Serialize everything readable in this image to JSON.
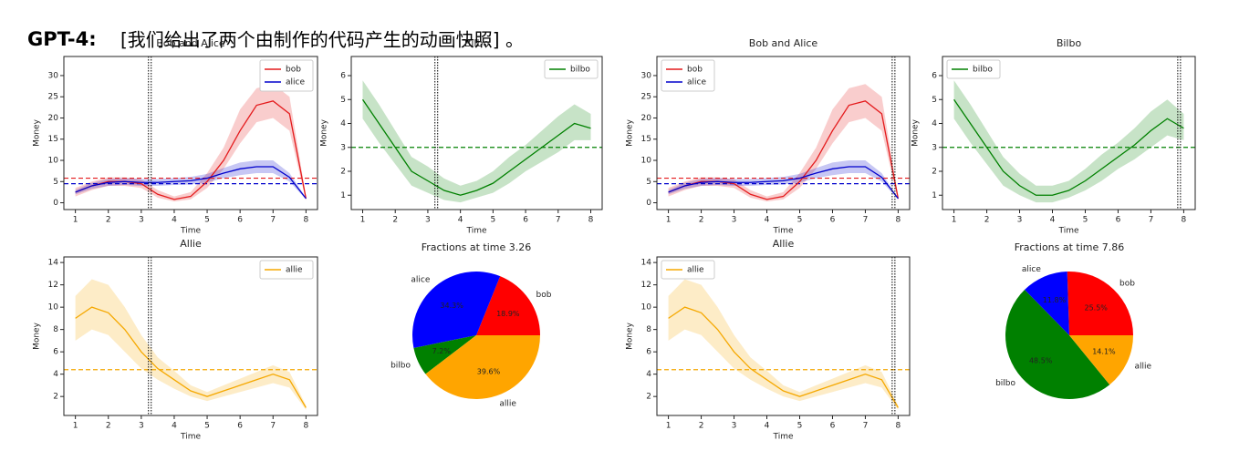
{
  "caption": {
    "lead": "GPT-4:",
    "text": "[我们给出了两个由制作的代码产生的动画快照] 。"
  },
  "chart_data": [
    {
      "type": "line",
      "title": "Bob and Alice",
      "xlabel": "Time",
      "ylabel": "Money",
      "x": [
        1,
        1.5,
        2,
        2.5,
        3,
        3.5,
        4,
        4.5,
        5,
        5.5,
        6,
        6.5,
        7,
        7.5,
        8
      ],
      "xlim": [
        0.65,
        8.35
      ],
      "xticks": [
        1,
        2,
        3,
        4,
        5,
        6,
        7,
        8
      ],
      "ylim": [
        -1.6,
        34.5
      ],
      "yticks": [
        0,
        5,
        10,
        15,
        20,
        25,
        30
      ],
      "legend": "upper right",
      "vline": 3.26,
      "hlines": [
        {
          "value": 5.8,
          "color": "#e41a1c"
        },
        {
          "value": 4.5,
          "color": "#0000cc"
        }
      ],
      "series": [
        {
          "name": "bob",
          "color": "#e41a1c",
          "values": [
            2.5,
            4,
            5,
            5,
            4.5,
            2,
            0.8,
            1.5,
            5,
            10,
            17,
            23,
            24,
            21,
            1
          ],
          "lower": [
            1.5,
            3,
            4,
            4,
            3.5,
            1.2,
            0.3,
            0.8,
            3.5,
            8,
            14,
            19,
            20,
            17,
            0.5
          ],
          "upper": [
            3.5,
            5,
            6,
            6,
            5.5,
            3,
            1.5,
            2.5,
            7,
            13,
            22,
            27,
            28,
            25,
            1.5
          ]
        },
        {
          "name": "alice",
          "color": "#0000cc",
          "values": [
            2.5,
            4,
            4.8,
            5,
            4.8,
            4.8,
            5,
            5.2,
            5.8,
            7,
            8,
            8.5,
            8.5,
            6,
            1
          ],
          "lower": [
            2,
            3.3,
            4,
            4.2,
            4,
            4,
            4.2,
            4.3,
            4.8,
            5.8,
            6.5,
            7,
            7,
            5,
            0.8
          ],
          "upper": [
            3,
            4.7,
            5.6,
            5.8,
            5.6,
            5.6,
            5.8,
            6.1,
            6.8,
            8.2,
            9.5,
            10,
            10,
            7,
            1.2
          ]
        }
      ]
    },
    {
      "type": "line",
      "title": "Bilbo",
      "xlabel": "Time",
      "ylabel": "Money",
      "x": [
        1,
        1.5,
        2,
        2.5,
        3,
        3.5,
        4,
        4.5,
        5,
        5.5,
        6,
        6.5,
        7,
        7.5,
        8
      ],
      "xlim": [
        0.65,
        8.35
      ],
      "xticks": [
        1,
        2,
        3,
        4,
        5,
        6,
        7,
        8
      ],
      "ylim": [
        0.4,
        6.8
      ],
      "yticks": [
        1,
        2,
        3,
        4,
        5,
        6
      ],
      "legend": "upper right",
      "vline": 3.26,
      "hlines": [
        {
          "value": 3,
          "color": "#008000"
        }
      ],
      "series": [
        {
          "name": "bilbo",
          "color": "#008000",
          "values": [
            5,
            4,
            3,
            2,
            1.6,
            1.2,
            1,
            1.2,
            1.5,
            2,
            2.5,
            3,
            3.5,
            4,
            3.8
          ],
          "lower": [
            4.2,
            3.2,
            2.3,
            1.4,
            1.1,
            0.8,
            0.7,
            0.9,
            1.1,
            1.5,
            2,
            2.4,
            2.8,
            3.3,
            3.3
          ],
          "upper": [
            5.8,
            4.8,
            3.7,
            2.6,
            2.2,
            1.7,
            1.4,
            1.6,
            2,
            2.6,
            3.1,
            3.7,
            4.3,
            4.8,
            4.4
          ]
        }
      ]
    },
    {
      "type": "line",
      "title": "Bob and Alice",
      "xlabel": "Time",
      "ylabel": "Money",
      "x": [
        1,
        1.5,
        2,
        2.5,
        3,
        3.5,
        4,
        4.5,
        5,
        5.5,
        6,
        6.5,
        7,
        7.5,
        8
      ],
      "xlim": [
        0.65,
        8.35
      ],
      "xticks": [
        1,
        2,
        3,
        4,
        5,
        6,
        7,
        8
      ],
      "ylim": [
        -1.6,
        34.5
      ],
      "yticks": [
        0,
        5,
        10,
        15,
        20,
        25,
        30
      ],
      "legend": "upper left",
      "vline": 7.86,
      "hlines": [
        {
          "value": 5.8,
          "color": "#e41a1c"
        },
        {
          "value": 4.5,
          "color": "#0000cc"
        }
      ],
      "series": [
        {
          "name": "bob",
          "color": "#e41a1c",
          "values": [
            2.5,
            4,
            5,
            5,
            4.5,
            2,
            0.8,
            1.5,
            5,
            10,
            17,
            23,
            24,
            21,
            1
          ],
          "lower": [
            1.5,
            3,
            4,
            4,
            3.5,
            1.2,
            0.3,
            0.8,
            3.5,
            8,
            14,
            19,
            20,
            17,
            0.5
          ],
          "upper": [
            3.5,
            5,
            6,
            6,
            5.5,
            3,
            1.5,
            2.5,
            7,
            13,
            22,
            27,
            28,
            25,
            1.5
          ]
        },
        {
          "name": "alice",
          "color": "#0000cc",
          "values": [
            2.5,
            4,
            4.8,
            5,
            4.8,
            4.8,
            5,
            5.2,
            5.8,
            7,
            8,
            8.5,
            8.5,
            6,
            1
          ],
          "lower": [
            2,
            3.3,
            4,
            4.2,
            4,
            4,
            4.2,
            4.3,
            4.8,
            5.8,
            6.5,
            7,
            7,
            5,
            0.8
          ],
          "upper": [
            3,
            4.7,
            5.6,
            5.8,
            5.6,
            5.6,
            5.8,
            6.1,
            6.8,
            8.2,
            9.5,
            10,
            10,
            7,
            1.2
          ]
        }
      ]
    },
    {
      "type": "line",
      "title": "Bilbo",
      "xlabel": "Time",
      "ylabel": "Money",
      "x": [
        1,
        1.5,
        2,
        2.5,
        3,
        3.5,
        4,
        4.5,
        5,
        5.5,
        6,
        6.5,
        7,
        7.5,
        8
      ],
      "xlim": [
        0.65,
        8.35
      ],
      "xticks": [
        1,
        2,
        3,
        4,
        5,
        6,
        7,
        8
      ],
      "ylim": [
        0.4,
        6.8
      ],
      "yticks": [
        1,
        2,
        3,
        4,
        5,
        6
      ],
      "legend": "upper left",
      "vline": 7.86,
      "hlines": [
        {
          "value": 3,
          "color": "#008000"
        }
      ],
      "series": [
        {
          "name": "bilbo",
          "color": "#008000",
          "values": [
            5,
            4,
            3,
            2,
            1.4,
            1,
            1,
            1.2,
            1.6,
            2.1,
            2.6,
            3.1,
            3.7,
            4.2,
            3.8
          ],
          "lower": [
            4.2,
            3.2,
            2.3,
            1.4,
            1,
            0.7,
            0.7,
            0.9,
            1.2,
            1.6,
            2.1,
            2.5,
            3,
            3.5,
            3.3
          ],
          "upper": [
            5.8,
            4.8,
            3.7,
            2.6,
            1.9,
            1.4,
            1.4,
            1.6,
            2.1,
            2.7,
            3.2,
            3.8,
            4.5,
            5,
            4.4
          ]
        }
      ]
    },
    {
      "type": "line",
      "title": "Allie",
      "xlabel": "Time",
      "ylabel": "Money",
      "x": [
        1,
        1.5,
        2,
        2.5,
        3,
        3.5,
        4,
        4.5,
        5,
        5.5,
        6,
        6.5,
        7,
        7.5,
        8
      ],
      "xlim": [
        0.65,
        8.35
      ],
      "xticks": [
        1,
        2,
        3,
        4,
        5,
        6,
        7,
        8
      ],
      "ylim": [
        0.3,
        14.5
      ],
      "yticks": [
        2,
        4,
        6,
        8,
        10,
        12,
        14
      ],
      "legend": "upper right",
      "vline": 3.26,
      "hlines": [
        {
          "value": 4.4,
          "color": "#f5a800"
        }
      ],
      "series": [
        {
          "name": "allie",
          "color": "#f5a800",
          "values": [
            9,
            10,
            9.5,
            8,
            6,
            4.5,
            3.5,
            2.5,
            2,
            2.5,
            3,
            3.5,
            4,
            3.5,
            1
          ],
          "lower": [
            7,
            8,
            7.5,
            6,
            4.5,
            3.5,
            2.7,
            2,
            1.6,
            2,
            2.4,
            2.8,
            3.2,
            2.8,
            0.8
          ],
          "upper": [
            11,
            12.5,
            12,
            10,
            7.5,
            5.5,
            4.3,
            3,
            2.4,
            3,
            3.6,
            4.2,
            4.8,
            4.2,
            1.2
          ]
        }
      ]
    },
    {
      "type": "pie",
      "title": "Fractions at time 3.26",
      "categories": [
        "bob",
        "alice",
        "bilbo",
        "allie"
      ],
      "values": [
        18.9,
        34.3,
        7.2,
        39.6
      ],
      "value_labels": [
        "18.9%",
        "34.3%",
        "7.2%",
        "39.6%"
      ],
      "colors": [
        "#ff0000",
        "#0000ff",
        "#008000",
        "#ffa500"
      ]
    },
    {
      "type": "line",
      "title": "Allie",
      "xlabel": "Time",
      "ylabel": "Money",
      "x": [
        1,
        1.5,
        2,
        2.5,
        3,
        3.5,
        4,
        4.5,
        5,
        5.5,
        6,
        6.5,
        7,
        7.5,
        8
      ],
      "xlim": [
        0.65,
        8.35
      ],
      "xticks": [
        1,
        2,
        3,
        4,
        5,
        6,
        7,
        8
      ],
      "ylim": [
        0.3,
        14.5
      ],
      "yticks": [
        2,
        4,
        6,
        8,
        10,
        12,
        14
      ],
      "legend": "upper left",
      "vline": 7.86,
      "hlines": [
        {
          "value": 4.4,
          "color": "#f5a800"
        }
      ],
      "series": [
        {
          "name": "allie",
          "color": "#f5a800",
          "values": [
            9,
            10,
            9.5,
            8,
            6,
            4.5,
            3.5,
            2.5,
            2,
            2.5,
            3,
            3.5,
            4,
            3.5,
            1
          ],
          "lower": [
            7,
            8,
            7.5,
            6,
            4.5,
            3.5,
            2.7,
            2,
            1.6,
            2,
            2.4,
            2.8,
            3.2,
            2.8,
            0.8
          ],
          "upper": [
            11,
            12.5,
            12,
            10,
            7.5,
            5.5,
            4.3,
            3,
            2.4,
            3,
            3.6,
            4.2,
            4.8,
            4.2,
            1.2
          ]
        }
      ]
    },
    {
      "type": "pie",
      "title": "Fractions at time 7.86",
      "categories": [
        "bob",
        "alice",
        "bilbo",
        "allie"
      ],
      "values": [
        25.5,
        11.8,
        48.5,
        14.1
      ],
      "value_labels": [
        "25.5%",
        "11.8%",
        "48.5%",
        "14.1%"
      ],
      "colors": [
        "#ff0000",
        "#0000ff",
        "#008000",
        "#ffa500"
      ]
    }
  ]
}
